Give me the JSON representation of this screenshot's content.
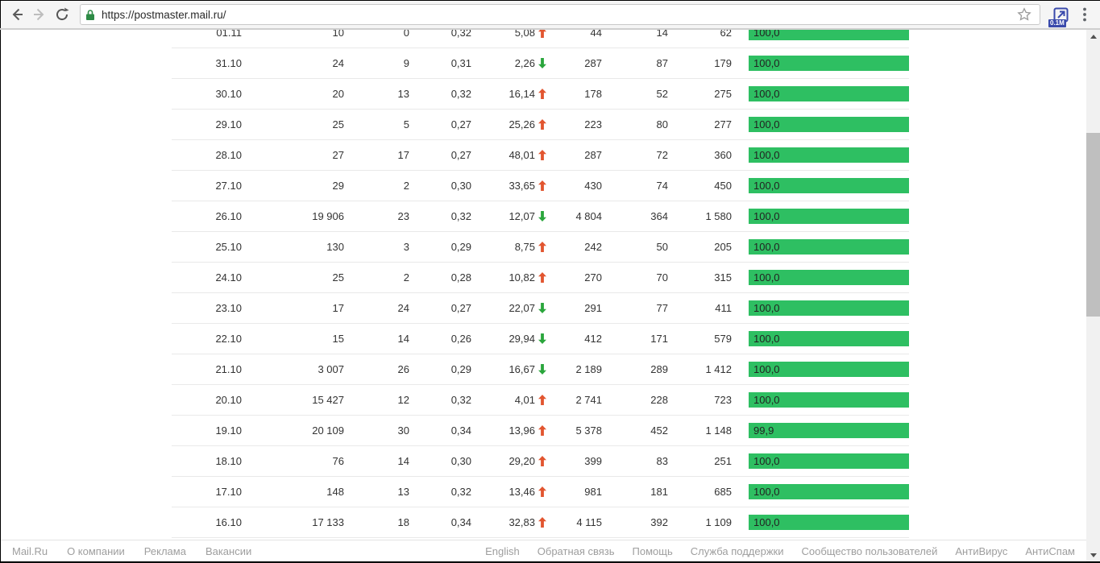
{
  "browser": {
    "url": "https://postmaster.mail.ru/",
    "extension_badge": "0.1M"
  },
  "icons": {
    "back-icon": "arrow-left",
    "forward-icon": "arrow-right (disabled)",
    "reload-icon": "circular-arrow",
    "lock-icon": "green-padlock",
    "star-icon": "star-outline",
    "extension-icon": "blue-popup-arrow",
    "menu-icon": "three-dots-vertical",
    "scroll-up-icon": "triangle-up",
    "scroll-down-icon": "triangle-down",
    "trend-up-icon": "solid-arrow-up",
    "trend-down-icon": "solid-arrow-down",
    "footer-more-icon": "triangle-down"
  },
  "colors": {
    "bar_green": "#2ebf62",
    "trend_up": "#e2552f",
    "trend_down": "#2aa63c",
    "lock_green": "#2e8b46"
  },
  "table": {
    "rows": [
      {
        "date": "01.11",
        "v1": "10",
        "v2": "0",
        "v3": "0,32",
        "delta": "5,08",
        "trend": "up",
        "v5": "44",
        "v6": "14",
        "v7": "62",
        "bar_label": "100,0",
        "bar_pct": 100
      },
      {
        "date": "31.10",
        "v1": "24",
        "v2": "9",
        "v3": "0,31",
        "delta": "2,26",
        "trend": "down",
        "v5": "287",
        "v6": "87",
        "v7": "179",
        "bar_label": "100,0",
        "bar_pct": 100
      },
      {
        "date": "30.10",
        "v1": "20",
        "v2": "13",
        "v3": "0,32",
        "delta": "16,14",
        "trend": "up",
        "v5": "178",
        "v6": "52",
        "v7": "275",
        "bar_label": "100,0",
        "bar_pct": 100
      },
      {
        "date": "29.10",
        "v1": "25",
        "v2": "5",
        "v3": "0,27",
        "delta": "25,26",
        "trend": "up",
        "v5": "223",
        "v6": "80",
        "v7": "277",
        "bar_label": "100,0",
        "bar_pct": 100
      },
      {
        "date": "28.10",
        "v1": "27",
        "v2": "17",
        "v3": "0,27",
        "delta": "48,01",
        "trend": "up",
        "v5": "287",
        "v6": "72",
        "v7": "360",
        "bar_label": "100,0",
        "bar_pct": 100
      },
      {
        "date": "27.10",
        "v1": "29",
        "v2": "2",
        "v3": "0,30",
        "delta": "33,65",
        "trend": "up",
        "v5": "430",
        "v6": "74",
        "v7": "450",
        "bar_label": "100,0",
        "bar_pct": 100
      },
      {
        "date": "26.10",
        "v1": "19 906",
        "v2": "23",
        "v3": "0,32",
        "delta": "12,07",
        "trend": "down",
        "v5": "4 804",
        "v6": "364",
        "v7": "1 580",
        "bar_label": "100,0",
        "bar_pct": 100
      },
      {
        "date": "25.10",
        "v1": "130",
        "v2": "3",
        "v3": "0,29",
        "delta": "8,75",
        "trend": "up",
        "v5": "242",
        "v6": "50",
        "v7": "205",
        "bar_label": "100,0",
        "bar_pct": 100
      },
      {
        "date": "24.10",
        "v1": "25",
        "v2": "2",
        "v3": "0,28",
        "delta": "10,82",
        "trend": "up",
        "v5": "270",
        "v6": "70",
        "v7": "315",
        "bar_label": "100,0",
        "bar_pct": 100
      },
      {
        "date": "23.10",
        "v1": "17",
        "v2": "24",
        "v3": "0,27",
        "delta": "22,07",
        "trend": "down",
        "v5": "291",
        "v6": "77",
        "v7": "411",
        "bar_label": "100,0",
        "bar_pct": 100
      },
      {
        "date": "22.10",
        "v1": "15",
        "v2": "14",
        "v3": "0,26",
        "delta": "29,94",
        "trend": "down",
        "v5": "412",
        "v6": "171",
        "v7": "579",
        "bar_label": "100,0",
        "bar_pct": 100
      },
      {
        "date": "21.10",
        "v1": "3 007",
        "v2": "26",
        "v3": "0,29",
        "delta": "16,67",
        "trend": "down",
        "v5": "2 189",
        "v6": "289",
        "v7": "1 412",
        "bar_label": "100,0",
        "bar_pct": 100
      },
      {
        "date": "20.10",
        "v1": "15 427",
        "v2": "12",
        "v3": "0,32",
        "delta": "4,01",
        "trend": "up",
        "v5": "2 741",
        "v6": "228",
        "v7": "723",
        "bar_label": "100,0",
        "bar_pct": 100
      },
      {
        "date": "19.10",
        "v1": "20 109",
        "v2": "30",
        "v3": "0,34",
        "delta": "13,96",
        "trend": "up",
        "v5": "5 378",
        "v6": "452",
        "v7": "1 148",
        "bar_label": "99,9",
        "bar_pct": 99.9
      },
      {
        "date": "18.10",
        "v1": "76",
        "v2": "14",
        "v3": "0,30",
        "delta": "29,20",
        "trend": "up",
        "v5": "399",
        "v6": "83",
        "v7": "251",
        "bar_label": "100,0",
        "bar_pct": 100
      },
      {
        "date": "17.10",
        "v1": "148",
        "v2": "13",
        "v3": "0,32",
        "delta": "13,46",
        "trend": "up",
        "v5": "981",
        "v6": "181",
        "v7": "685",
        "bar_label": "100,0",
        "bar_pct": 100
      },
      {
        "date": "16.10",
        "v1": "17 133",
        "v2": "18",
        "v3": "0,34",
        "delta": "32,83",
        "trend": "up",
        "v5": "4 115",
        "v6": "392",
        "v7": "1 109",
        "bar_label": "100,0",
        "bar_pct": 100
      }
    ]
  },
  "footer": {
    "left_links": [
      "Mail.Ru",
      "О компании",
      "Реклама",
      "Вакансии"
    ],
    "right_links": [
      "English",
      "Обратная связь",
      "Помощь",
      "Служба поддержки",
      "Сообщество пользователей",
      "АнтиВирус",
      "АнтиСпам"
    ]
  }
}
